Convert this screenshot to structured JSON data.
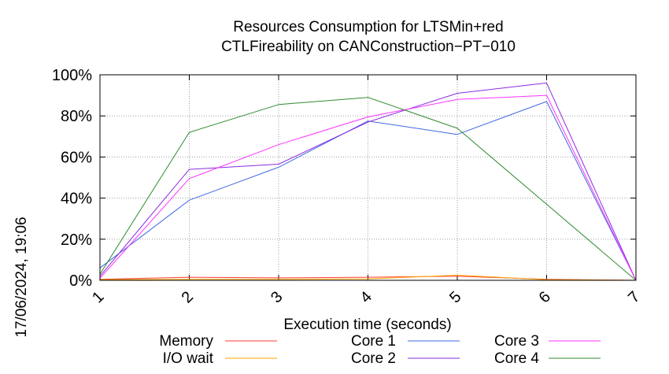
{
  "chart_data": {
    "type": "line",
    "title_line1": "Resources Consumption for LTSMin+red",
    "title_line2": "CTLFireability on CANConstruction−PT−010",
    "xlabel": "Execution time (seconds)",
    "ylabel": "",
    "timestamp": "17/06/2024, 19:06",
    "x": [
      1,
      2,
      3,
      4,
      5,
      6,
      7
    ],
    "xlim": [
      1,
      7
    ],
    "ylim": [
      0,
      100
    ],
    "x_ticks": [
      "1",
      "2",
      "3",
      "4",
      "5",
      "6",
      "7"
    ],
    "y_ticks": [
      {
        "value": 0,
        "label": "0%"
      },
      {
        "value": 20,
        "label": "20%"
      },
      {
        "value": 40,
        "label": "40%"
      },
      {
        "value": 60,
        "label": "60%"
      },
      {
        "value": 80,
        "label": "80%"
      },
      {
        "value": 100,
        "label": "100%"
      }
    ],
    "grid": true,
    "legend_position": "bottom",
    "series": [
      {
        "name": "Memory",
        "color": "#ff3b2f",
        "values": [
          0.5,
          1.5,
          1.2,
          1.5,
          2.0,
          0.5,
          0
        ]
      },
      {
        "name": "I/O wait",
        "color": "#ffa500",
        "values": [
          0.3,
          0.5,
          0.5,
          0.7,
          2.5,
          0.3,
          0
        ]
      },
      {
        "name": "Core 1",
        "color": "#4169e1",
        "values": [
          6,
          39,
          55,
          77.5,
          71,
          87,
          0
        ]
      },
      {
        "name": "Core 2",
        "color": "#8a2be2",
        "values": [
          2,
          54,
          56.5,
          77,
          91,
          96,
          0
        ]
      },
      {
        "name": "Core 3",
        "color": "#ff33ff",
        "values": [
          1,
          49.5,
          66,
          79.5,
          88,
          90,
          0
        ]
      },
      {
        "name": "Core 4",
        "color": "#2e8b2e",
        "values": [
          3,
          72,
          85.5,
          89,
          74,
          37,
          0
        ]
      }
    ]
  }
}
